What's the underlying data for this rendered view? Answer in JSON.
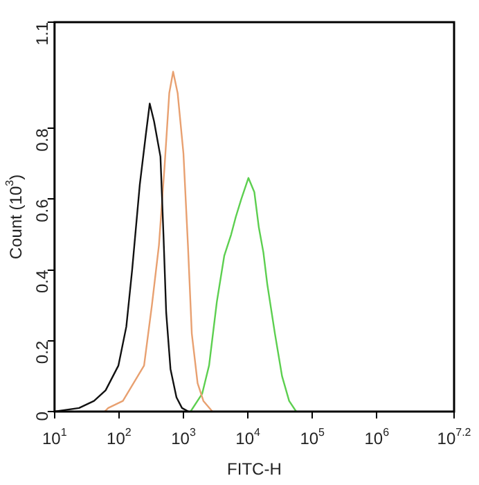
{
  "chart_data": {
    "type": "line",
    "xlabel": "FITC-H",
    "ylabel": "Count (10$^{3}$)",
    "log": "x",
    "xlim": [
      10,
      15848932
    ],
    "xticks": [
      {
        "value": 10,
        "label": "10$^{1}$"
      },
      {
        "value": 100,
        "label": "10$^{2}$"
      },
      {
        "value": 1000,
        "label": "10$^{3}$"
      },
      {
        "value": 10000,
        "label": "10$^{4}$"
      },
      {
        "value": 100000,
        "label": "10$^{5}$"
      },
      {
        "value": 1000000,
        "label": "10$^{6}$"
      },
      {
        "value": 15848932,
        "label": "10$^{7.2}$"
      }
    ],
    "ylim": [
      0,
      1.1
    ],
    "yticks": [
      0,
      0.2,
      0.4,
      0.6,
      0.8,
      1.1
    ],
    "grid": false,
    "legend": false,
    "marker": "none",
    "line_style": "solid",
    "series": [
      {
        "color": "#111111",
        "x": [
          10,
          24,
          41,
          62,
          98,
          130,
          160,
          210,
          260,
          300,
          350,
          440,
          490,
          540,
          630,
          780,
          950,
          1200
        ],
        "values": [
          0,
          0.01,
          0.03,
          0.06,
          0.13,
          0.24,
          0.4,
          0.64,
          0.78,
          0.87,
          0.82,
          0.72,
          0.5,
          0.28,
          0.12,
          0.04,
          0.01,
          0
        ]
      },
      {
        "color": "#e8a070",
        "x": [
          60,
          68,
          115,
          245,
          324,
          417,
          513,
          603,
          692,
          813,
          1000,
          1175,
          1349,
          1660,
          2042,
          2818
        ],
        "values": [
          0,
          0.01,
          0.03,
          0.13,
          0.3,
          0.47,
          0.7,
          0.9,
          0.96,
          0.9,
          0.73,
          0.47,
          0.22,
          0.08,
          0.03,
          0
        ]
      },
      {
        "color": "#5ccf4f",
        "x": [
          1290,
          1950,
          2500,
          3300,
          4300,
          5500,
          6500,
          7900,
          10200,
          12600,
          14800,
          17400,
          20000,
          26300,
          33900,
          43700,
          56200
        ],
        "values": [
          0,
          0.05,
          0.13,
          0.31,
          0.44,
          0.5,
          0.55,
          0.6,
          0.66,
          0.62,
          0.52,
          0.45,
          0.36,
          0.22,
          0.1,
          0.03,
          0
        ]
      }
    ]
  }
}
